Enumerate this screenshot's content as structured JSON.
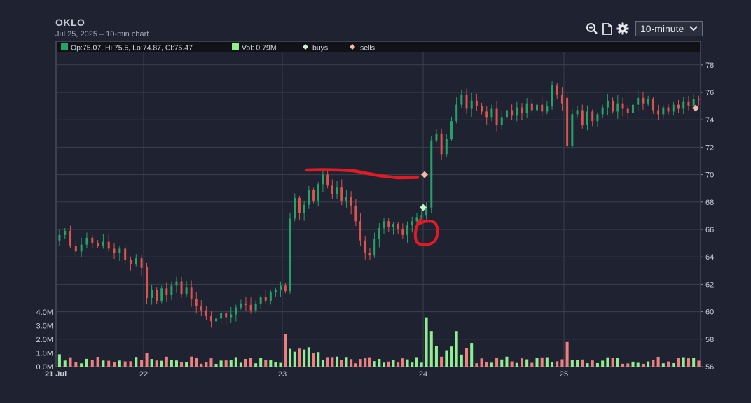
{
  "header": {
    "ticker": "OKLO",
    "subtitle": "Jul 25, 2025 – 10-min chart"
  },
  "toolbar": {
    "icons": [
      "zoom-in-icon",
      "document-icon",
      "gear-icon"
    ],
    "interval_value": "10-minute"
  },
  "legend": {
    "ohlc": "Op:75.07, Hi:75.5, Lo:74.87, Cl:75.47",
    "volume": "Vol: 0.79M",
    "buys": "buys",
    "sells": "sells"
  },
  "colors": {
    "up": "#26a269",
    "down": "#d9534f",
    "vol_up": "#90ee90",
    "vol_down": "#f08080",
    "buy_marker": "#ccf5cc",
    "sell_marker": "#f5b8a8",
    "annotation": "#e01b24",
    "grid": "#3b3f4e",
    "background": "#1f2230"
  },
  "chart_data": {
    "type": "candlestick",
    "x_ticks": [
      "21 Jul",
      "22",
      "23",
      "24",
      "25"
    ],
    "y_ticks": [
      "56",
      "58",
      "60",
      "62",
      "64",
      "66",
      "68",
      "70",
      "72",
      "74",
      "76",
      "78"
    ],
    "volume_ticks": [
      "0.0M",
      "1.0M",
      "2.0M",
      "3.0M",
      "4.0M"
    ],
    "ylim": [
      56,
      79
    ],
    "volume_lim": [
      0,
      4.5
    ],
    "close_series_by_day": [
      [
        65.6,
        65.9,
        64.8,
        64.4,
        64.9,
        65.4,
        65.0,
        64.8,
        65.1,
        64.6,
        64.3,
        64.6,
        63.8,
        63.5,
        63.9,
        63.2
      ],
      [
        61.0,
        61.6,
        60.8,
        61.7,
        61.2,
        61.9,
        62.2,
        61.3,
        61.8,
        60.9,
        60.4,
        60.1,
        59.7,
        59.3,
        59.5,
        59.9,
        59.6,
        59.8,
        60.3,
        60.6,
        60.5,
        60.1,
        60.6,
        61.1,
        60.8,
        61.4,
        61.6,
        61.9
      ],
      [
        61.5,
        66.8,
        68.3,
        67.2,
        67.8,
        68.9,
        68.1,
        69.3,
        70.0,
        69.2,
        68.6,
        69.1,
        68.1,
        68.4,
        67.7,
        66.6,
        65.2,
        64.3,
        64.1,
        65.3,
        66.1,
        66.6,
        66.2,
        66.4,
        66.0,
        65.6,
        66.3,
        66.6,
        66.9,
        67.0
      ],
      [
        67.6,
        72.5,
        73.0,
        71.5,
        72.6,
        73.9,
        75.1,
        75.8,
        74.8,
        75.4,
        75.0,
        74.6,
        74.2,
        74.8,
        73.6,
        74.2,
        74.7,
        74.3,
        74.9,
        74.5,
        75.2,
        74.7,
        75.1,
        74.6,
        75.0,
        76.5,
        75.8,
        75.2
      ],
      [
        72.1,
        74.4,
        74.7,
        73.6,
        74.6,
        73.9,
        74.4,
        74.9,
        75.4,
        74.6,
        75.2,
        74.8,
        74.5,
        75.1,
        75.6,
        75.2,
        75.5,
        74.7,
        74.4,
        74.9,
        74.6,
        75.1,
        74.8,
        75.3,
        75.0,
        75.5,
        75.47
      ]
    ],
    "day_opens": [
      65.2,
      63.3,
      61.9,
      67.0,
      75.6
    ],
    "volume_spikes_M": [
      0.9,
      1.0,
      2.4,
      1.2,
      3.6,
      2.8,
      1.9
    ],
    "buy_markers": [
      {
        "day": 3,
        "price": 67.6
      }
    ],
    "sell_markers": [
      {
        "day": 3,
        "price": 70.0
      },
      {
        "day": 5,
        "price": 74.85
      }
    ]
  }
}
